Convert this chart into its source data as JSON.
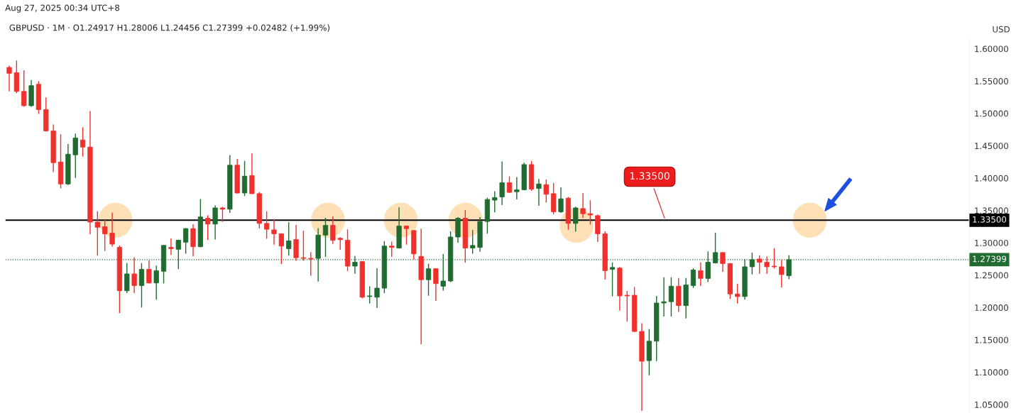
{
  "chart_data": {
    "type": "candlestick",
    "title": "GBPUSD · 1M · O1.24917 H1.28006 L1.24456 C1.27399 +0.02482 (+1.99%)",
    "ylabel": "USD",
    "categories": [
      null,
      null,
      null,
      null,
      null,
      null,
      null,
      null,
      null,
      null,
      null,
      null,
      null,
      null,
      null,
      null,
      null,
      null,
      null,
      null,
      null,
      null,
      null,
      null,
      null,
      null,
      null,
      null,
      null,
      null,
      null,
      null,
      null,
      null,
      null,
      null,
      null,
      null,
      null,
      null,
      null,
      null,
      null,
      null,
      null,
      null,
      null,
      null,
      null,
      null,
      null,
      null,
      null,
      null,
      null,
      null,
      null,
      null,
      null,
      null,
      null,
      null,
      null,
      null,
      null,
      null,
      null,
      null,
      null,
      null,
      null,
      null,
      null,
      null,
      null,
      null,
      null,
      null,
      null,
      null,
      null,
      null,
      null,
      null,
      null,
      null,
      null,
      null,
      null,
      null,
      null,
      null,
      null,
      null,
      null,
      null,
      null,
      null,
      null,
      null,
      null,
      null,
      null,
      null,
      null,
      null,
      null,
      null,
      null,
      null,
      null,
      null,
      null,
      null,
      null,
      null,
      null,
      null,
      null,
      null,
      null,
      null,
      null,
      null,
      null,
      null,
      null,
      null,
      null,
      null,
      null
    ],
    "ohlc": [
      [
        1.571,
        1.573,
        1.535,
        1.562
      ],
      [
        1.563,
        1.581,
        1.532,
        1.534
      ],
      [
        1.534,
        1.566,
        1.511,
        1.512
      ],
      [
        1.512,
        1.551,
        1.511,
        1.543
      ],
      [
        1.545,
        1.549,
        1.5,
        1.506
      ],
      [
        1.506,
        1.524,
        1.473,
        1.473
      ],
      [
        1.473,
        1.482,
        1.41,
        1.424
      ],
      [
        1.425,
        1.467,
        1.385,
        1.391
      ],
      [
        1.391,
        1.452,
        1.39,
        1.437
      ],
      [
        1.436,
        1.468,
        1.401,
        1.462
      ],
      [
        1.459,
        1.478,
        1.434,
        1.448
      ],
      [
        1.448,
        1.503,
        1.314,
        1.332
      ],
      [
        1.332,
        1.348,
        1.281,
        1.324
      ],
      [
        1.325,
        1.335,
        1.288,
        1.314
      ],
      [
        1.315,
        1.346,
        1.295,
        1.298
      ],
      [
        1.293,
        1.295,
        1.192,
        1.226
      ],
      [
        1.226,
        1.268,
        1.223,
        1.252
      ],
      [
        1.252,
        1.277,
        1.223,
        1.234
      ],
      [
        1.234,
        1.268,
        1.201,
        1.259
      ],
      [
        1.259,
        1.272,
        1.238,
        1.238
      ],
      [
        1.238,
        1.264,
        1.213,
        1.257
      ],
      [
        1.256,
        1.296,
        1.238,
        1.296
      ],
      [
        1.293,
        1.306,
        1.282,
        1.291
      ],
      [
        1.29,
        1.304,
        1.26,
        1.304
      ],
      [
        1.301,
        1.322,
        1.284,
        1.322
      ],
      [
        1.322,
        1.328,
        1.28,
        1.294
      ],
      [
        1.294,
        1.367,
        1.294,
        1.34
      ],
      [
        1.338,
        1.342,
        1.305,
        1.329
      ],
      [
        1.329,
        1.357,
        1.306,
        1.354
      ],
      [
        1.354,
        1.355,
        1.333,
        1.352
      ],
      [
        1.352,
        1.435,
        1.347,
        1.42
      ],
      [
        1.42,
        1.429,
        1.377,
        1.377
      ],
      [
        1.377,
        1.426,
        1.373,
        1.403
      ],
      [
        1.404,
        1.438,
        1.376,
        1.376
      ],
      [
        1.376,
        1.378,
        1.323,
        1.33
      ],
      [
        1.33,
        1.348,
        1.307,
        1.321
      ],
      [
        1.32,
        1.336,
        1.298,
        1.314
      ],
      [
        1.314,
        1.314,
        1.268,
        1.295
      ],
      [
        1.291,
        1.331,
        1.281,
        1.303
      ],
      [
        1.305,
        1.327,
        1.273,
        1.277
      ],
      [
        1.277,
        1.318,
        1.273,
        1.276
      ],
      [
        1.276,
        1.285,
        1.25,
        1.275
      ],
      [
        1.276,
        1.322,
        1.241,
        1.312
      ],
      [
        1.312,
        1.338,
        1.279,
        1.327
      ],
      [
        1.327,
        1.34,
        1.299,
        1.304
      ],
      [
        1.307,
        1.308,
        1.29,
        1.305
      ],
      [
        1.304,
        1.32,
        1.257,
        1.264
      ],
      [
        1.264,
        1.279,
        1.253,
        1.27
      ],
      [
        1.271,
        1.271,
        1.215,
        1.216
      ],
      [
        1.217,
        1.232,
        1.207,
        1.218
      ],
      [
        1.216,
        1.26,
        1.2,
        1.23
      ],
      [
        1.23,
        1.302,
        1.223,
        1.295
      ],
      [
        1.295,
        1.301,
        1.279,
        1.293
      ],
      [
        1.292,
        1.354,
        1.292,
        1.326
      ],
      [
        1.326,
        1.326,
        1.298,
        1.322
      ],
      [
        1.319,
        1.319,
        1.275,
        1.283
      ],
      [
        1.279,
        1.321,
        1.144,
        1.243
      ],
      [
        1.243,
        1.267,
        1.219,
        1.26
      ],
      [
        1.26,
        1.26,
        1.211,
        1.237
      ],
      [
        1.233,
        1.282,
        1.227,
        1.241
      ],
      [
        1.241,
        1.317,
        1.24,
        1.309
      ],
      [
        1.309,
        1.339,
        1.301,
        1.338
      ],
      [
        1.338,
        1.35,
        1.27,
        1.292
      ],
      [
        1.292,
        1.319,
        1.284,
        1.296
      ],
      [
        1.293,
        1.339,
        1.287,
        1.333
      ],
      [
        1.333,
        1.369,
        1.315,
        1.367
      ],
      [
        1.366,
        1.379,
        1.348,
        1.37
      ],
      [
        1.371,
        1.425,
        1.359,
        1.393
      ],
      [
        1.393,
        1.402,
        1.378,
        1.378
      ],
      [
        1.379,
        1.401,
        1.368,
        1.382
      ],
      [
        1.382,
        1.423,
        1.382,
        1.421
      ],
      [
        1.421,
        1.426,
        1.381,
        1.383
      ],
      [
        1.384,
        1.398,
        1.358,
        1.391
      ],
      [
        1.39,
        1.397,
        1.363,
        1.375
      ],
      [
        1.376,
        1.392,
        1.345,
        1.348
      ],
      [
        1.348,
        1.385,
        1.347,
        1.368
      ],
      [
        1.369,
        1.37,
        1.321,
        1.33
      ],
      [
        1.33,
        1.355,
        1.318,
        1.354
      ],
      [
        1.353,
        1.376,
        1.339,
        1.345
      ],
      [
        1.345,
        1.365,
        1.329,
        1.343
      ],
      [
        1.342,
        1.343,
        1.302,
        1.314
      ],
      [
        1.314,
        1.317,
        1.244,
        1.257
      ],
      [
        1.259,
        1.269,
        1.218,
        1.262
      ],
      [
        1.261,
        1.262,
        1.196,
        1.218
      ],
      [
        1.219,
        1.225,
        1.179,
        1.218
      ],
      [
        1.219,
        1.231,
        1.163,
        1.163
      ],
      [
        1.163,
        1.175,
        1.041,
        1.117
      ],
      [
        1.118,
        1.166,
        1.096,
        1.148
      ],
      [
        1.148,
        1.217,
        1.118,
        1.207
      ],
      [
        1.207,
        1.246,
        1.187,
        1.209
      ],
      [
        1.209,
        1.246,
        1.187,
        1.233
      ],
      [
        1.233,
        1.245,
        1.194,
        1.203
      ],
      [
        1.203,
        1.245,
        1.184,
        1.235
      ],
      [
        1.234,
        1.26,
        1.231,
        1.258
      ],
      [
        1.257,
        1.269,
        1.234,
        1.245
      ],
      [
        1.245,
        1.286,
        1.24,
        1.27
      ],
      [
        1.269,
        1.315,
        1.269,
        1.285
      ],
      [
        1.285,
        1.285,
        1.256,
        1.268
      ],
      [
        1.268,
        1.268,
        1.214,
        1.221
      ],
      [
        1.221,
        1.236,
        1.207,
        1.217
      ],
      [
        1.217,
        1.274,
        1.213,
        1.263
      ],
      [
        1.263,
        1.284,
        1.252,
        1.274
      ],
      [
        1.275,
        1.28,
        1.253,
        1.27
      ],
      [
        1.27,
        1.278,
        1.253,
        1.263
      ],
      [
        1.264,
        1.291,
        1.261,
        1.263
      ],
      [
        1.263,
        1.273,
        1.232,
        1.251
      ],
      [
        1.24917,
        1.28006,
        1.24456,
        1.27399
      ],
      null,
      null,
      null,
      null,
      null,
      null,
      null,
      null,
      null,
      null,
      null,
      null,
      null,
      null,
      null,
      null,
      null,
      null,
      null,
      null,
      null,
      null,
      null,
      null
    ],
    "colors": [
      "#f0302c",
      "#f0302c",
      "#f0302c",
      "#1f6b30",
      "#f0302c",
      "#f0302c",
      "#f0302c",
      "#f0302c",
      "#1f6b30",
      "#1f6b30",
      "#f0302c",
      "#f0302c",
      "#f0302c",
      "#f0302c",
      "#f0302c",
      "#f0302c",
      "#1f6b30",
      "#f0302c",
      "#1f6b30",
      "#f0302c",
      "#1f6b30",
      "#1f6b30",
      "#f0302c",
      "#1f6b30",
      "#1f6b30",
      "#f0302c",
      "#1f6b30",
      "#f0302c",
      "#1f6b30",
      "#f0302c",
      "#1f6b30",
      "#f0302c",
      "#1f6b30",
      "#f0302c",
      "#f0302c",
      "#f0302c",
      "#f0302c",
      "#f0302c",
      "#1f6b30",
      "#f0302c",
      "#f0302c",
      "#f0302c",
      "#1f6b30",
      "#1f6b30",
      "#f0302c",
      "#f0302c",
      "#f0302c",
      "#1f6b30",
      "#f0302c",
      "#1f6b30",
      "#1f6b30",
      "#1f6b30",
      "#f0302c",
      "#1f6b30",
      "#f0302c",
      "#f0302c",
      "#f0302c",
      "#1f6b30",
      "#f0302c",
      "#1f6b30",
      "#1f6b30",
      "#1f6b30",
      "#f0302c",
      "#1f6b30",
      "#1f6b30",
      "#1f6b30",
      "#1f6b30",
      "#1f6b30",
      "#f0302c",
      "#1f6b30",
      "#1f6b30",
      "#f0302c",
      "#1f6b30",
      "#f0302c",
      "#f0302c",
      "#1f6b30",
      "#f0302c",
      "#1f6b30",
      "#f0302c",
      "#f0302c",
      "#f0302c",
      "#f0302c",
      "#1f6b30",
      "#f0302c",
      "#f0302c",
      "#f0302c",
      "#f0302c",
      "#1f6b30",
      "#1f6b30",
      "#1f6b30",
      "#1f6b30",
      "#f0302c",
      "#1f6b30",
      "#1f6b30",
      "#f0302c",
      "#1f6b30",
      "#1f6b30",
      "#f0302c",
      "#f0302c",
      "#f0302c",
      "#1f6b30",
      "#1f6b30",
      "#f0302c",
      "#f0302c",
      "#f0302c",
      "#f0302c",
      "#1f6b30",
      null,
      null,
      null,
      null,
      null,
      null,
      null,
      null,
      null,
      null,
      null,
      null,
      null,
      null,
      null,
      null,
      null,
      null,
      null,
      null,
      null,
      null,
      null,
      null
    ],
    "ylim": [
      1.037,
      1.615
    ],
    "yticks": [
      {
        "value": 1.05,
        "label": "1.05000"
      },
      {
        "value": 1.1,
        "label": "1.10000"
      },
      {
        "value": 1.15,
        "label": "1.15000"
      },
      {
        "value": 1.2,
        "label": "1.20000"
      },
      {
        "value": 1.25,
        "label": "1.25000"
      },
      {
        "value": 1.3,
        "label": "1.30000"
      },
      {
        "value": 1.35,
        "label": "1.35000"
      },
      {
        "value": 1.4,
        "label": "1.40000"
      },
      {
        "value": 1.45,
        "label": "1.45000"
      },
      {
        "value": 1.5,
        "label": "1.50000"
      },
      {
        "value": 1.55,
        "label": "1.55000"
      },
      {
        "value": 1.6,
        "label": "1.60000"
      }
    ],
    "ref_lines": [
      {
        "axis": "y",
        "value": 1.335,
        "label": "1.33500",
        "color": "#000000",
        "line_style": "solid"
      },
      {
        "axis": "y",
        "value": 1.27399,
        "label": "1.27399",
        "color": "#1f6b30",
        "line_style": "dotted"
      }
    ],
    "annotations": [
      "1.33500",
      "Aug 27, 2025 00:34 UTC+8"
    ],
    "tick_labels": "y",
    "grid": false,
    "legend": false
  }
}
